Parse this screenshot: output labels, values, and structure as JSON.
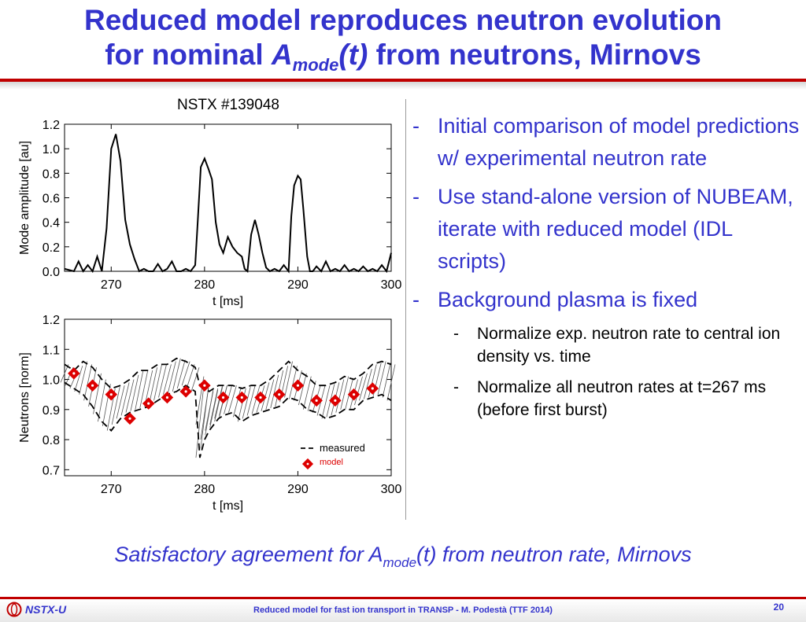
{
  "title": {
    "line1": "Reduced model reproduces neutron evolution",
    "line2_prefix": "for nominal ",
    "line2_A": "A",
    "line2_sub": "mode",
    "line2_t": "(t)",
    "line2_suffix": " from neutrons, Mirnovs"
  },
  "colors": {
    "accent": "#3333cc",
    "rule": "#c00000",
    "marker": "#dd0000"
  },
  "chart_data": [
    {
      "type": "line",
      "title": "NSTX #139048",
      "xlabel": "t [ms]",
      "ylabel": "Mode amplitude [au]",
      "xlim": [
        265,
        300
      ],
      "ylim": [
        0.0,
        1.2
      ],
      "xticks": [
        "270",
        "280",
        "290",
        "300"
      ],
      "yticks": [
        "0.0",
        "0.2",
        "0.4",
        "0.6",
        "0.8",
        "1.0",
        "1.2"
      ],
      "series": [
        {
          "x": [
            265,
            266,
            266.5,
            267,
            267.5,
            268,
            268.5,
            269,
            269.5,
            270,
            270.5,
            271,
            271.5,
            272,
            272.5,
            273,
            273.5,
            274,
            274.5,
            275,
            275.5,
            276,
            276.5,
            277,
            277.5,
            278,
            278.5,
            279,
            279.3,
            279.6,
            280,
            280.4,
            280.8,
            281.2,
            281.6,
            282,
            282.5,
            283,
            283.5,
            284,
            284.3,
            284.6,
            285,
            285.4,
            285.8,
            286.2,
            286.6,
            287,
            287.5,
            288,
            288.5,
            289,
            289.3,
            289.6,
            290,
            290.3,
            290.6,
            291,
            291.3,
            291.6,
            292,
            292.5,
            293,
            293.5,
            294,
            294.5,
            295,
            295.5,
            296,
            296.5,
            297,
            297.5,
            298,
            298.5,
            299,
            299.5,
            300
          ],
          "y": [
            0.02,
            0.0,
            0.08,
            0.0,
            0.05,
            0.0,
            0.12,
            0.0,
            0.35,
            1.0,
            1.12,
            0.9,
            0.42,
            0.22,
            0.1,
            0.0,
            0.02,
            0.0,
            0.0,
            0.06,
            0.0,
            0.02,
            0.08,
            0.0,
            0.0,
            0.02,
            0.0,
            0.05,
            0.45,
            0.85,
            0.92,
            0.84,
            0.75,
            0.4,
            0.22,
            0.15,
            0.28,
            0.2,
            0.15,
            0.12,
            0.02,
            0.0,
            0.3,
            0.42,
            0.3,
            0.15,
            0.03,
            0.0,
            0.02,
            0.0,
            0.05,
            0.0,
            0.45,
            0.7,
            0.78,
            0.75,
            0.5,
            0.12,
            0.0,
            0.0,
            0.04,
            0.0,
            0.08,
            0.0,
            0.02,
            0.0,
            0.05,
            0.0,
            0.02,
            0.0,
            0.04,
            0.0,
            0.02,
            0.0,
            0.05,
            0.0,
            0.15
          ]
        }
      ]
    },
    {
      "type": "line",
      "xlabel": "t [ms]",
      "ylabel": "Neutrons [norm]",
      "xlim": [
        265,
        300
      ],
      "ylim": [
        0.68,
        1.2
      ],
      "xticks": [
        "270",
        "280",
        "290",
        "300"
      ],
      "yticks": [
        "0.7",
        "0.8",
        "0.9",
        "1.0",
        "1.1",
        "1.2"
      ],
      "legend": {
        "measured": "measured",
        "model": "model",
        "placement": "bottom-right"
      },
      "series": [
        {
          "name": "measured",
          "x": [
            265,
            266,
            267,
            268,
            269,
            270,
            271,
            272,
            273,
            274,
            275,
            276,
            277,
            278,
            279,
            279.5,
            280,
            280.5,
            281,
            281.5,
            282,
            283,
            284,
            285,
            286,
            287,
            288,
            289,
            290,
            291,
            292,
            293,
            294,
            295,
            296,
            297,
            298,
            299,
            300
          ],
          "y_low": [
            0.99,
            0.97,
            0.95,
            0.91,
            0.86,
            0.83,
            0.87,
            0.89,
            0.9,
            0.91,
            0.93,
            0.95,
            0.96,
            0.98,
            0.96,
            0.74,
            0.8,
            0.83,
            0.85,
            0.87,
            0.88,
            0.89,
            0.86,
            0.88,
            0.89,
            0.9,
            0.91,
            0.94,
            0.93,
            0.9,
            0.89,
            0.87,
            0.88,
            0.9,
            0.9,
            0.93,
            0.94,
            0.95,
            0.93
          ],
          "y_high": [
            1.05,
            1.03,
            1.06,
            1.04,
            1.0,
            0.97,
            0.98,
            1.0,
            1.03,
            1.03,
            1.05,
            1.05,
            1.07,
            1.06,
            1.04,
            0.98,
            0.97,
            0.96,
            0.97,
            0.98,
            0.98,
            0.98,
            0.97,
            0.98,
            0.98,
            1.0,
            1.03,
            1.06,
            1.03,
            1.01,
            0.98,
            0.98,
            0.99,
            1.01,
            1.0,
            1.02,
            1.05,
            1.06,
            1.05
          ]
        },
        {
          "name": "model",
          "x": [
            266,
            268,
            270,
            272,
            274,
            276,
            278,
            280,
            282,
            284,
            286,
            288,
            290,
            292,
            294,
            296,
            298
          ],
          "y": [
            1.02,
            0.98,
            0.95,
            0.87,
            0.92,
            0.94,
            0.96,
            0.98,
            0.94,
            0.94,
            0.94,
            0.95,
            0.98,
            0.93,
            0.93,
            0.95,
            0.97
          ]
        }
      ]
    }
  ],
  "bullets": [
    {
      "dash": "-",
      "text": "Initial comparison of model predictions w/ experimental neutron rate"
    },
    {
      "dash": "-",
      "text": "Use stand-alone version of NUBEAM, iterate with reduced model (IDL scripts)"
    },
    {
      "dash": "-",
      "text": "Background plasma is fixed"
    }
  ],
  "sub_bullets": [
    {
      "dash": "-",
      "text": "Normalize exp. neutron rate to central ion density vs. time"
    },
    {
      "dash": "-",
      "text": "Normalize all neutron rates at t=267 ms (before first burst)"
    }
  ],
  "statement": {
    "prefix": "Satisfactory agreement for A",
    "sub": "mode",
    "suffix": "(t) from neutron rate, Mirnovs"
  },
  "footer": {
    "logo": "NSTX-U",
    "text": "Reduced model for fast ion transport in TRANSP - M. Podestà (TTF 2014)",
    "page": "20"
  }
}
